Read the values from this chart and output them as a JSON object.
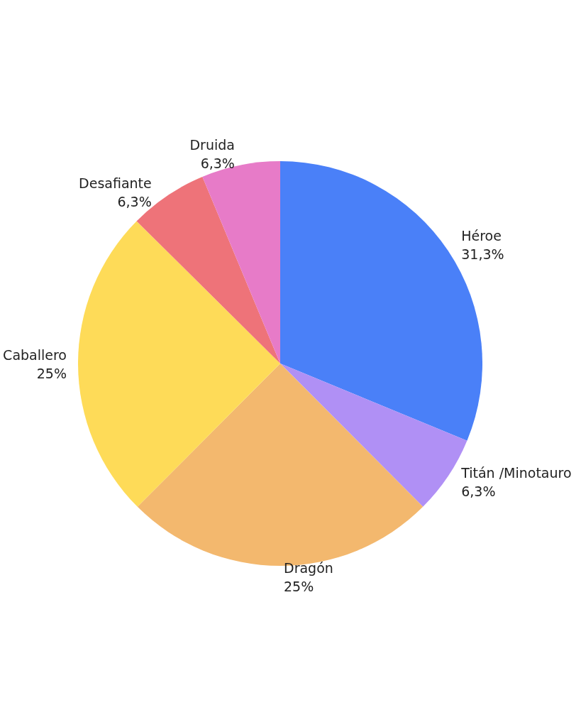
{
  "chart_data": {
    "type": "pie",
    "categories": [
      "Héroe",
      "Titán /Minotauro",
      "Dragón",
      "Caballero",
      "Desafiante",
      "Druida"
    ],
    "values": [
      31.3,
      6.3,
      25,
      25,
      6.3,
      6.3
    ],
    "value_labels": [
      "31,3%",
      "6,3%",
      "25%",
      "25%",
      "6,3%",
      "6,3%"
    ],
    "colors": [
      "#4a80f8",
      "#b090f5",
      "#f3b86e",
      "#fedb58",
      "#ee7379",
      "#e77bc8"
    ],
    "legend": false
  }
}
